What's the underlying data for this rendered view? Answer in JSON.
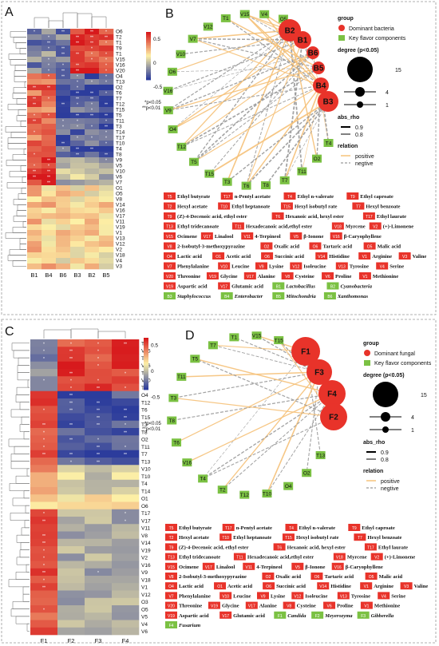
{
  "top": {
    "letter_heatmap": "A",
    "letter_network": "B",
    "heatmap": {
      "columns": [
        "B1",
        "B4",
        "B6",
        "B3",
        "B2",
        "B5"
      ],
      "rows": [
        "O6",
        "T2",
        "T1",
        "T9",
        "T1",
        "V15",
        "V16",
        "V20",
        "O4",
        "T13",
        "O2",
        "T6",
        "T7",
        "T12",
        "T15",
        "T5",
        "T11",
        "T3",
        "T14",
        "T17",
        "T10",
        "T4",
        "T8",
        "V9",
        "V5",
        "V10",
        "V6",
        "V7",
        "O1",
        "O5",
        "V8",
        "V14",
        "V16",
        "V17",
        "V11",
        "V19",
        "V1",
        "V13",
        "V12",
        "V2",
        "V18",
        "V4",
        "V3"
      ],
      "colorbar_ticks": [
        "0.5",
        "0",
        "-0.5"
      ],
      "sig_note": [
        "*p<0.05",
        "**p<0.01"
      ]
    },
    "network": {
      "ring_nodes": [
        "O5",
        "V4",
        "V15",
        "T1",
        "V12",
        "V7",
        "V10",
        "O6",
        "V16",
        "V9",
        "O4",
        "T12",
        "T5",
        "T15",
        "T3",
        "T6",
        "T8",
        "T7",
        "T11",
        "O2",
        "T4"
      ],
      "hub_nodes": [
        "B2",
        "B1",
        "B6",
        "B5",
        "B4",
        "B3"
      ],
      "legend": {
        "group_title": "group",
        "group_items": [
          "Dominant bacteria",
          "Key flavor components"
        ],
        "degree_title": "degree (p<0.05)",
        "degree_vals": [
          "15",
          "4",
          "1"
        ],
        "abs_title": "abs_rho",
        "abs_vals": [
          "0.9",
          "0.8"
        ],
        "rel_title": "relation",
        "rel_vals": [
          "positive",
          "negtive"
        ]
      }
    },
    "key": [
      {
        "c": "T5",
        "n": "Ethyl butyrate",
        "g": "r"
      },
      {
        "c": "T17",
        "n": "n-Pentyl acetate",
        "g": "r"
      },
      {
        "c": "T4",
        "n": "Ethyl n-valerate",
        "g": "r"
      },
      {
        "c": "T9",
        "n": "Ethyl caproate",
        "g": "r"
      },
      {
        "c": "T2",
        "n": "Hexyl acetate",
        "g": "r"
      },
      {
        "c": "T10",
        "n": "Ethyl heptanoate",
        "g": "r"
      },
      {
        "c": "T15",
        "n": "Hexyl isobutyl rate",
        "g": "r"
      },
      {
        "c": "T7",
        "n": "Hexyl benzoate",
        "g": "r"
      },
      {
        "c": "T9",
        "n": "(Z)-4-Decenoic acid, ethyl ester",
        "g": "r"
      },
      {
        "c": "T6",
        "n": "Hexanoic acid, hexyl ester",
        "g": "r"
      },
      {
        "c": "T17",
        "n": "Ethyl laurate",
        "g": "r"
      },
      {
        "c": "T13",
        "n": "Ethyl tridecanoate",
        "g": "r"
      },
      {
        "c": "T11",
        "n": "Hexadecanoic acid,ethyl ester",
        "g": "r"
      },
      {
        "c": "V18",
        "n": "Myrcene",
        "g": "r"
      },
      {
        "c": "V2",
        "n": "(+)-Limonene",
        "g": "r"
      },
      {
        "c": "V15",
        "n": "Ocimene",
        "g": "r"
      },
      {
        "c": "V17",
        "n": "Linalool",
        "g": "r"
      },
      {
        "c": "V11",
        "n": "4-Terpineol",
        "g": "r"
      },
      {
        "c": "V5",
        "n": "β-Ionone",
        "g": "r"
      },
      {
        "c": "V16",
        "n": "β-Caryophyllene",
        "g": "r"
      },
      {
        "c": "V8",
        "n": "2-Isobutyl-3-methoxypyrazine",
        "g": "r"
      },
      {
        "c": "O2",
        "n": "Oxalic acid",
        "g": "r"
      },
      {
        "c": "O6",
        "n": "Tartaric acid",
        "g": "r"
      },
      {
        "c": "O5",
        "n": "Malic acid",
        "g": "r"
      },
      {
        "c": "O4",
        "n": "Lactic acid",
        "g": "r"
      },
      {
        "c": "O1",
        "n": "Acetic acid",
        "g": "r"
      },
      {
        "c": "O6",
        "n": "Succinic acid",
        "g": "r"
      },
      {
        "c": "V14",
        "n": "Histidine",
        "g": "r"
      },
      {
        "c": "V1",
        "n": "Arginine",
        "g": "r"
      },
      {
        "c": "V3",
        "n": "Valine",
        "g": "r"
      },
      {
        "c": "V7",
        "n": "Phenylalanine",
        "g": "r"
      },
      {
        "c": "V10",
        "n": "Leucine",
        "g": "r"
      },
      {
        "c": "V9",
        "n": "Lysine",
        "g": "r"
      },
      {
        "c": "V12",
        "n": "Isoleucine",
        "g": "r"
      },
      {
        "c": "V13",
        "n": "Tyrosine",
        "g": "r"
      },
      {
        "c": "V4",
        "n": "Serine",
        "g": "r"
      },
      {
        "c": "V20",
        "n": "Threonine",
        "g": "r"
      },
      {
        "c": "V19",
        "n": "Glycine",
        "g": "r"
      },
      {
        "c": "V17",
        "n": "Alanine",
        "g": "r"
      },
      {
        "c": "V8",
        "n": "Cysteine",
        "g": "r"
      },
      {
        "c": "V6",
        "n": "Proline",
        "g": "r"
      },
      {
        "c": "V1",
        "n": "Methionine",
        "g": "r"
      },
      {
        "c": "V19",
        "n": "Aspartic acid",
        "g": "r"
      },
      {
        "c": "V17",
        "n": "Glutamic acid",
        "g": "r"
      },
      {
        "c": "B1",
        "n": "Lactobacillus",
        "g": "g"
      },
      {
        "c": "B2",
        "n": "Cyanobacteria",
        "g": "g"
      },
      {
        "c": "B3",
        "n": "Staphylococcus",
        "g": "g"
      },
      {
        "c": "B4",
        "n": "Enterobacter",
        "g": "g"
      },
      {
        "c": "B5",
        "n": "Mitochondria",
        "g": "g"
      },
      {
        "c": "B6",
        "n": "Xanthomonas",
        "g": "g"
      }
    ]
  },
  "bottom": {
    "letter_heatmap": "C",
    "letter_network": "D",
    "heatmap": {
      "columns": [
        "F1",
        "F2",
        "F3",
        "F4"
      ],
      "rows": [
        "T1",
        "V15",
        "T2",
        "V16",
        "T9",
        "V20",
        "T5",
        "O4",
        "T12",
        "T6",
        "T15",
        "T3",
        "T8",
        "O2",
        "T11",
        "T7",
        "T13",
        "V10",
        "T10",
        "T4",
        "T14",
        "O1",
        "O6",
        "T17",
        "V17",
        "V11",
        "V8",
        "V14",
        "V19",
        "V2",
        "V16",
        "V9",
        "V18",
        "V1",
        "V12",
        "O3",
        "O5",
        "V5",
        "V4",
        "V6"
      ],
      "colorbar_ticks": [
        "0.5",
        "0",
        "-0.5"
      ],
      "sig_note": [
        "*p<0.05",
        "**p<0.01"
      ]
    },
    "network": {
      "ring_nodes": [
        "T15",
        "V15",
        "T1",
        "T7",
        "T5",
        "T11",
        "T3",
        "T8",
        "T6",
        "V16",
        "T4",
        "T2",
        "T12",
        "T10",
        "O4",
        "O2",
        "T13"
      ],
      "hub_nodes": [
        "F1",
        "F3",
        "F4",
        "F2"
      ],
      "legend": {
        "group_title": "group",
        "group_items": [
          "Dominant fungal",
          "Key flavor components"
        ],
        "degree_title": "degree (p<0.05)",
        "degree_vals": [
          "15",
          "4",
          "1"
        ],
        "abs_title": "abs_rho",
        "abs_vals": [
          "0.9",
          "0.8"
        ],
        "rel_title": "relation",
        "rel_vals": [
          "positive",
          "negtive"
        ]
      }
    },
    "key": [
      {
        "c": "T5",
        "n": "Ethyl butyrate",
        "g": "r"
      },
      {
        "c": "T17",
        "n": "n-Pentyl acetate",
        "g": "r"
      },
      {
        "c": "T4",
        "n": "Ethyl n-valerate",
        "g": "r"
      },
      {
        "c": "T9",
        "n": "Ethyl caproate",
        "g": "r"
      },
      {
        "c": "T2",
        "n": "Hexyl acetate",
        "g": "r"
      },
      {
        "c": "T10",
        "n": "Ethyl heptanoate",
        "g": "r"
      },
      {
        "c": "T15",
        "n": "Hexyl isobutyl rate",
        "g": "r"
      },
      {
        "c": "T7",
        "n": "Hexyl benzoate",
        "g": "r"
      },
      {
        "c": "T9",
        "n": "(Z)-4-Decenoic acid, ethyl ester",
        "g": "r"
      },
      {
        "c": "T6",
        "n": "Hexanoic acid, hexyl ester",
        "g": "r"
      },
      {
        "c": "T17",
        "n": "Ethyl laurate",
        "g": "r"
      },
      {
        "c": "T13",
        "n": "Ethyl tridecanoate",
        "g": "r"
      },
      {
        "c": "T11",
        "n": "Hexadecanoic acid,ethyl ester",
        "g": "r"
      },
      {
        "c": "V18",
        "n": "Myrcene",
        "g": "r"
      },
      {
        "c": "V2",
        "n": "(+)-Limonene",
        "g": "r"
      },
      {
        "c": "V15",
        "n": "Ocimene",
        "g": "r"
      },
      {
        "c": "V17",
        "n": "Linalool",
        "g": "r"
      },
      {
        "c": "V11",
        "n": "4-Terpineol",
        "g": "r"
      },
      {
        "c": "V5",
        "n": "β-Ionone",
        "g": "r"
      },
      {
        "c": "V16",
        "n": "β-Caryophyllene",
        "g": "r"
      },
      {
        "c": "V8",
        "n": "2-Isobutyl-3-methoxypyrazine",
        "g": "r"
      },
      {
        "c": "O2",
        "n": "Oxalic acid",
        "g": "r"
      },
      {
        "c": "O6",
        "n": "Tartaric acid",
        "g": "r"
      },
      {
        "c": "O5",
        "n": "Malic acid",
        "g": "r"
      },
      {
        "c": "O4",
        "n": "Lactic acid",
        "g": "r"
      },
      {
        "c": "O1",
        "n": "Acetic acid",
        "g": "r"
      },
      {
        "c": "O6",
        "n": "Succinic acid",
        "g": "r"
      },
      {
        "c": "V14",
        "n": "Histidine",
        "g": "r"
      },
      {
        "c": "V1",
        "n": "Arginine",
        "g": "r"
      },
      {
        "c": "V3",
        "n": "Valine",
        "g": "r"
      },
      {
        "c": "V7",
        "n": "Phenylalanine",
        "g": "r"
      },
      {
        "c": "V10",
        "n": "Leucine",
        "g": "r"
      },
      {
        "c": "V9",
        "n": "Lysine",
        "g": "r"
      },
      {
        "c": "V12",
        "n": "Isoleucine",
        "g": "r"
      },
      {
        "c": "V13",
        "n": "Tyrosine",
        "g": "r"
      },
      {
        "c": "V4",
        "n": "Serine",
        "g": "r"
      },
      {
        "c": "V20",
        "n": "Threonine",
        "g": "r"
      },
      {
        "c": "V19",
        "n": "Glycine",
        "g": "r"
      },
      {
        "c": "V17",
        "n": "Alanine",
        "g": "r"
      },
      {
        "c": "V8",
        "n": "Cysteine",
        "g": "r"
      },
      {
        "c": "V6",
        "n": "Proline",
        "g": "r"
      },
      {
        "c": "V1",
        "n": "Methionine",
        "g": "r"
      },
      {
        "c": "V19",
        "n": "Aspartic acid",
        "g": "r"
      },
      {
        "c": "V17",
        "n": "Glutamic acid",
        "g": "r"
      },
      {
        "c": "F1",
        "n": "Candida",
        "g": "g"
      },
      {
        "c": "F2",
        "n": "Meyerozyma",
        "g": "g"
      },
      {
        "c": "F3",
        "n": "Gibberella",
        "g": "g"
      },
      {
        "c": "F4",
        "n": "Fusarium",
        "g": "g"
      }
    ]
  },
  "colors": {
    "red": "#e8332a",
    "green": "#7bc143",
    "heat_hi": "#d7191c",
    "heat_mid": "#fdf0a6",
    "heat_lo": "#2c3c9c",
    "pos_edge": "#f6c27a",
    "neg_edge": "#9a9a9a"
  }
}
